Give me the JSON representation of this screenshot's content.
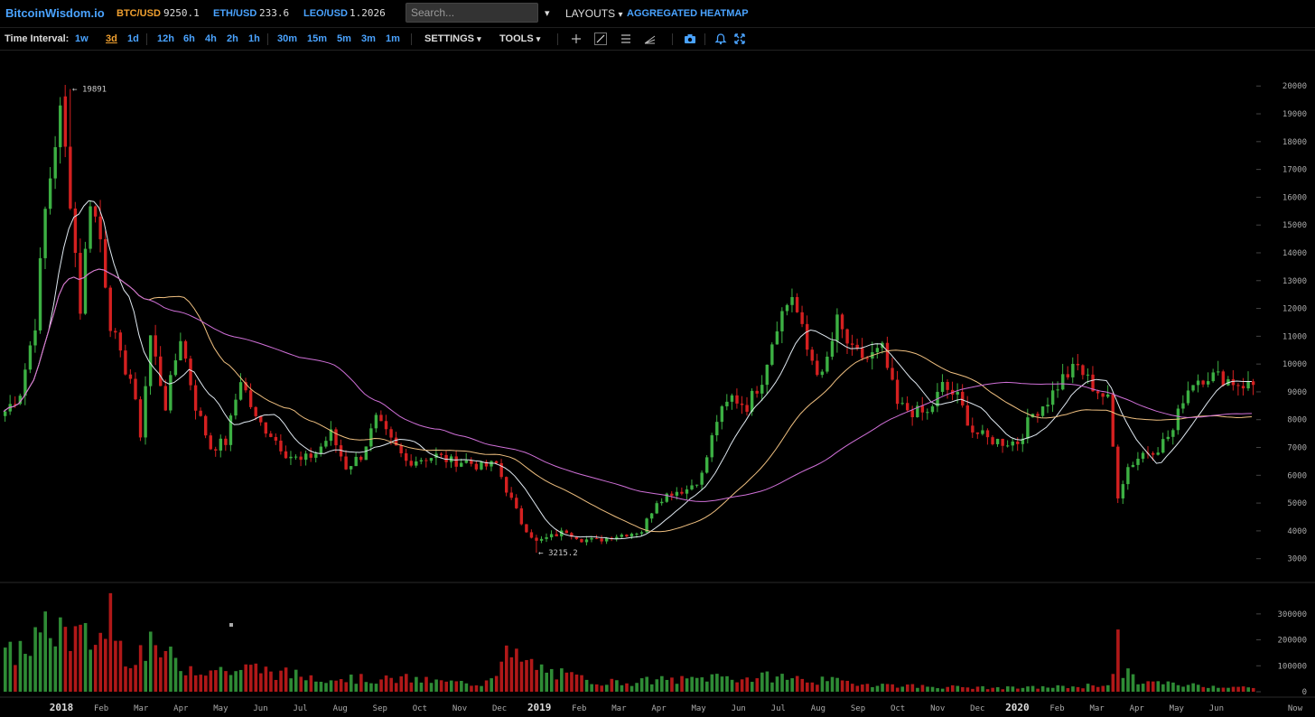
{
  "topbar": {
    "logo": "BitcoinWisdom.io",
    "tickers": [
      {
        "pair": "BTC/USD",
        "price": "9250.1",
        "color": "#f0a030"
      },
      {
        "pair": "ETH/USD",
        "price": "233.6",
        "color": "#4aa3ff"
      },
      {
        "pair": "LEO/USD",
        "price": "1.2026",
        "color": "#4aa3ff"
      }
    ],
    "search_placeholder": "Search...",
    "dropdown_glyph": "▾",
    "layouts": "LAYOUTS",
    "heatmap": "AGGREGATED HEATMAP"
  },
  "toolbar": {
    "label": "Time Interval:",
    "intervals": [
      "1w",
      "3d",
      "1d",
      "12h",
      "6h",
      "4h",
      "2h",
      "1h",
      "30m",
      "15m",
      "5m",
      "3m",
      "1m"
    ],
    "selected_interval": "3d",
    "settings": "SETTINGS",
    "tools": "TOOLS",
    "tool_icons": [
      "crosshair-icon",
      "trendline-icon",
      "horizontal-lines-icon",
      "fib-icon",
      "camera-icon",
      "bell-icon",
      "fullscreen-icon"
    ]
  },
  "chart_data": {
    "type": "candlestick",
    "price_ticks": [
      "20000",
      "19000",
      "18000",
      "17000",
      "16000",
      "15000",
      "14000",
      "13000",
      "12000",
      "11000",
      "10000",
      "9000",
      "8000",
      "7000",
      "6000",
      "5000",
      "4000",
      "3000"
    ],
    "volume_ticks": [
      "300000",
      "200000",
      "100000",
      "0"
    ],
    "ylim": [
      2600,
      20300
    ],
    "volume_ylim": [
      0,
      390000
    ],
    "x_labels": [
      "2018",
      "Feb",
      "Mar",
      "Apr",
      "May",
      "Jun",
      "Jul",
      "Aug",
      "Sep",
      "Oct",
      "Nov",
      "Dec",
      "2019",
      "Feb",
      "Mar",
      "Apr",
      "May",
      "Jun",
      "Jul",
      "Aug",
      "Sep",
      "Oct",
      "Nov",
      "Dec",
      "2020",
      "Feb",
      "Mar",
      "Apr",
      "May",
      "Jun",
      "Now"
    ],
    "bold_labels": [
      "2018",
      "2019",
      "2020"
    ],
    "high_annotation": "← 19891",
    "low_annotation": "← 3215.2",
    "high_value": 19891,
    "low_value": 3215.2,
    "colors": {
      "up": "#3cb043",
      "down": "#d42020",
      "ma_fast": "#dfe8f0",
      "ma_mid": "#f0c080",
      "ma_slow": "#d070d8",
      "grid_text": "#aaa"
    },
    "price_anchors": [
      [
        0,
        8300
      ],
      [
        3,
        9000
      ],
      [
        6,
        11500
      ],
      [
        8,
        15500
      ],
      [
        11,
        19300
      ],
      [
        13,
        16000
      ],
      [
        15,
        12000
      ],
      [
        17,
        16000
      ],
      [
        19,
        14500
      ],
      [
        21,
        11500
      ],
      [
        23,
        10200
      ],
      [
        25,
        9500
      ],
      [
        27,
        7500
      ],
      [
        29,
        11000
      ],
      [
        32,
        8500
      ],
      [
        35,
        11000
      ],
      [
        38,
        8500
      ],
      [
        41,
        7000
      ],
      [
        44,
        7200
      ],
      [
        47,
        9500
      ],
      [
        50,
        8000
      ],
      [
        53,
        7500
      ],
      [
        56,
        6800
      ],
      [
        59,
        6500
      ],
      [
        62,
        6800
      ],
      [
        65,
        7500
      ],
      [
        68,
        6300
      ],
      [
        71,
        6700
      ],
      [
        74,
        8000
      ],
      [
        77,
        7200
      ],
      [
        80,
        6500
      ],
      [
        83,
        6600
      ],
      [
        86,
        6700
      ],
      [
        89,
        6500
      ],
      [
        92,
        6500
      ],
      [
        95,
        6300
      ],
      [
        98,
        6400
      ],
      [
        100,
        5500
      ],
      [
        103,
        4300
      ],
      [
        106,
        3600
      ],
      [
        109,
        3800
      ],
      [
        112,
        4000
      ],
      [
        115,
        3700
      ],
      [
        118,
        3650
      ],
      [
        121,
        3800
      ],
      [
        124,
        3900
      ],
      [
        127,
        4000
      ],
      [
        130,
        5100
      ],
      [
        133,
        5400
      ],
      [
        136,
        5500
      ],
      [
        139,
        6000
      ],
      [
        142,
        8000
      ],
      [
        145,
        8800
      ],
      [
        148,
        8500
      ],
      [
        151,
        9500
      ],
      [
        154,
        11500
      ],
      [
        157,
        12500
      ],
      [
        160,
        10500
      ],
      [
        163,
        9500
      ],
      [
        166,
        11500
      ],
      [
        169,
        10400
      ],
      [
        172,
        10200
      ],
      [
        175,
        10500
      ],
      [
        178,
        8500
      ],
      [
        181,
        8300
      ],
      [
        184,
        8200
      ],
      [
        187,
        9200
      ],
      [
        190,
        8800
      ],
      [
        193,
        7600
      ],
      [
        196,
        7300
      ],
      [
        199,
        7200
      ],
      [
        202,
        7200
      ],
      [
        205,
        8200
      ],
      [
        208,
        8700
      ],
      [
        211,
        9500
      ],
      [
        214,
        9900
      ],
      [
        217,
        9200
      ],
      [
        220,
        8700
      ],
      [
        222,
        5300
      ],
      [
        224,
        6300
      ],
      [
        227,
        6800
      ],
      [
        230,
        7000
      ],
      [
        233,
        7600
      ],
      [
        235,
        8800
      ],
      [
        237,
        9400
      ],
      [
        240,
        9600
      ],
      [
        243,
        9500
      ],
      [
        246,
        9300
      ],
      [
        248,
        9250
      ]
    ],
    "volume_anchors": [
      [
        0,
        130000
      ],
      [
        10,
        250000
      ],
      [
        15,
        200000
      ],
      [
        20,
        210000
      ],
      [
        25,
        150000
      ],
      [
        30,
        170000
      ],
      [
        35,
        100000
      ],
      [
        40,
        90000
      ],
      [
        45,
        80000
      ],
      [
        50,
        90000
      ],
      [
        55,
        70000
      ],
      [
        60,
        60000
      ],
      [
        65,
        55000
      ],
      [
        70,
        50000
      ],
      [
        75,
        45000
      ],
      [
        80,
        50000
      ],
      [
        85,
        40000
      ],
      [
        90,
        35000
      ],
      [
        95,
        30000
      ],
      [
        98,
        90000
      ],
      [
        100,
        140000
      ],
      [
        104,
        110000
      ],
      [
        108,
        80000
      ],
      [
        112,
        60000
      ],
      [
        118,
        40000
      ],
      [
        124,
        35000
      ],
      [
        130,
        45000
      ],
      [
        136,
        45000
      ],
      [
        142,
        60000
      ],
      [
        148,
        50000
      ],
      [
        154,
        60000
      ],
      [
        160,
        45000
      ],
      [
        166,
        40000
      ],
      [
        172,
        30000
      ],
      [
        178,
        25000
      ],
      [
        184,
        20000
      ],
      [
        190,
        18000
      ],
      [
        196,
        15000
      ],
      [
        202,
        15000
      ],
      [
        208,
        18000
      ],
      [
        214,
        20000
      ],
      [
        220,
        30000
      ],
      [
        222,
        90000
      ],
      [
        226,
        40000
      ],
      [
        232,
        30000
      ],
      [
        238,
        25000
      ],
      [
        244,
        20000
      ],
      [
        248,
        15000
      ]
    ]
  }
}
